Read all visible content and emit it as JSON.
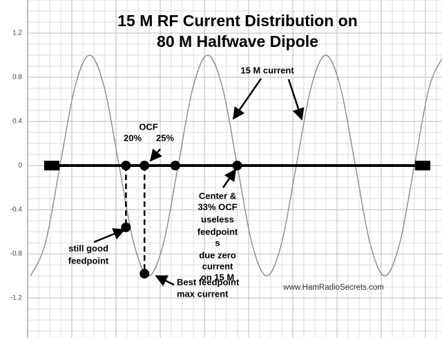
{
  "chart_data": {
    "type": "line",
    "title": [
      "15 M RF Current Distribution on",
      "80 M Halfwave Dipole"
    ],
    "ylim": [
      -1.5625,
      1.5
    ],
    "xlim": [
      -0.065,
      1.052
    ],
    "yticks": [
      1.2,
      0.8,
      0.4,
      0,
      -0.4,
      -0.8,
      -1.2
    ],
    "grid": true,
    "curve": {
      "color": "#8a8a8a",
      "x": [
        -0.0572,
        -0.0174,
        0.0224,
        0.0622,
        0.102,
        0.1418,
        0.1816,
        0.2214,
        0.2612,
        0.301,
        0.3408,
        0.3806,
        0.4204,
        0.4602,
        0.5,
        0.5398,
        0.5796,
        0.6194,
        0.6592,
        0.699,
        0.7388,
        0.7786,
        0.8184,
        0.8582,
        0.898,
        0.9378,
        0.9776,
        1.0174,
        1.0572
      ],
      "values": [
        -1,
        -0.707,
        0,
        0.707,
        1,
        0.707,
        0,
        -0.707,
        -1,
        -0.707,
        0,
        0.707,
        1,
        0.707,
        0,
        -0.707,
        -1,
        -0.707,
        0,
        0.707,
        1,
        0.707,
        0,
        -0.707,
        -1,
        -0.707,
        0,
        0.707,
        1
      ]
    },
    "wire": {
      "color": "#000000",
      "x": [
        0,
        1
      ],
      "values": [
        0,
        0
      ]
    },
    "points": {
      "color": "#000000",
      "x": [
        0.2,
        0.25,
        0.333,
        0.5,
        0.2,
        0.25
      ],
      "values": [
        0,
        0,
        0,
        0,
        -0.56,
        -0.98
      ]
    },
    "annotations": [
      "15 M current",
      "OCF",
      "20%",
      "25%",
      "Center &",
      "33% OCF",
      "useless",
      "feedpoint",
      "s",
      "due zero",
      "current",
      "on 15 M",
      "still good",
      "feedpoint",
      "Best feedpoint",
      "max current",
      "www.HamRadioSecrets.com"
    ]
  }
}
